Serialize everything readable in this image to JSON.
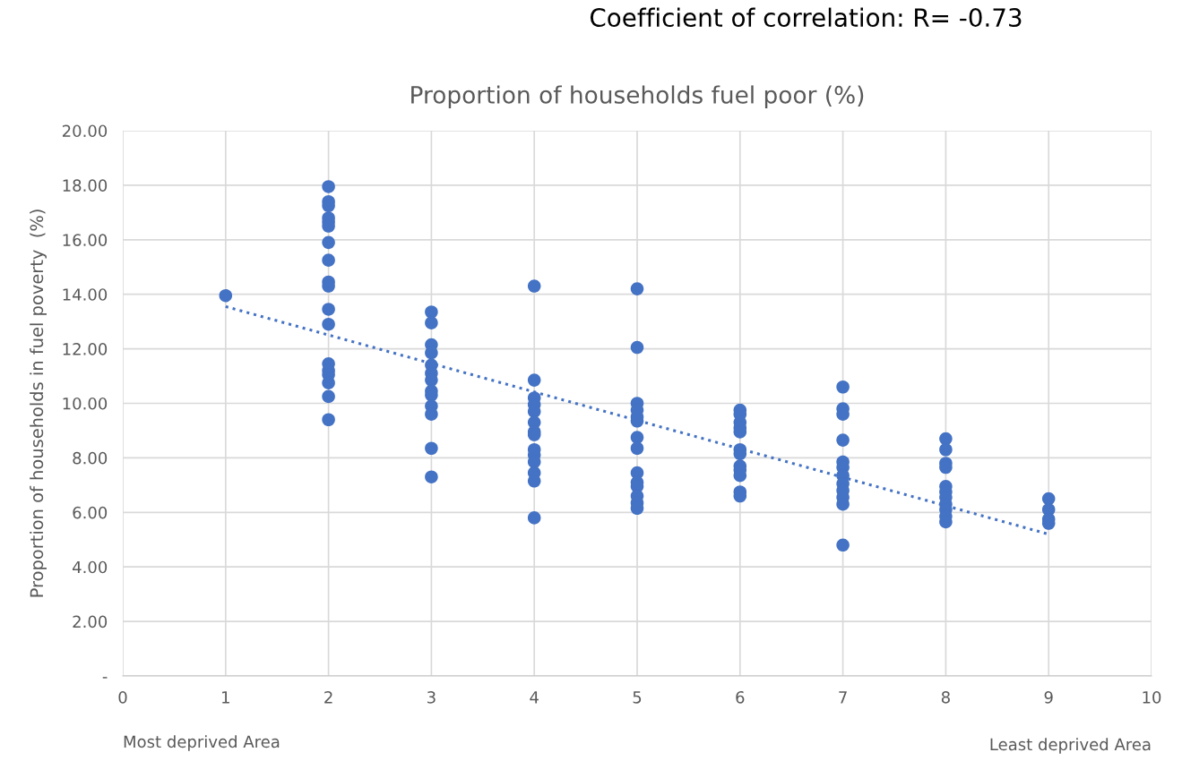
{
  "chart_data": {
    "type": "scatter",
    "title": "Proportion of households fuel poor (%)",
    "ylabel": "Proportion of households in fuel poverty  (%)",
    "annotations": [
      "Coefficient of correlation: R= -0.73",
      "Most deprived Area",
      "Least deprived Area"
    ],
    "xlim": [
      0,
      10
    ],
    "xticks": [
      0,
      1,
      2,
      3,
      4,
      5,
      6,
      7,
      8,
      9,
      10
    ],
    "ylim": [
      0,
      20
    ],
    "yticks": [
      {
        "value": 0,
        "label": "-"
      },
      {
        "value": 2,
        "label": "2.00"
      },
      {
        "value": 4,
        "label": "4.00"
      },
      {
        "value": 6,
        "label": "6.00"
      },
      {
        "value": 8,
        "label": "8.00"
      },
      {
        "value": 10,
        "label": "10.00"
      },
      {
        "value": 12,
        "label": "12.00"
      },
      {
        "value": 14,
        "label": "14.00"
      },
      {
        "value": 16,
        "label": "16.00"
      },
      {
        "value": 18,
        "label": "18.00"
      },
      {
        "value": 20,
        "label": "20.00"
      }
    ],
    "grid": true,
    "series": [
      {
        "color": "#4472c4",
        "marker": "circle",
        "x": [
          1,
          2,
          2,
          2,
          2,
          2,
          2,
          2,
          2,
          2,
          2,
          2,
          2,
          2,
          2,
          2,
          2,
          2,
          2,
          3,
          3,
          3,
          3,
          3,
          3,
          3,
          3,
          3,
          3,
          3,
          3,
          3,
          4,
          4,
          4,
          4,
          4,
          4,
          4,
          4,
          4,
          4,
          4,
          4,
          4,
          4,
          5,
          5,
          5,
          5,
          5,
          5,
          5,
          5,
          5,
          5,
          5,
          5,
          5,
          5,
          6,
          6,
          6,
          6,
          6,
          6,
          6,
          6,
          6,
          6,
          6,
          6,
          7,
          7,
          7,
          7,
          7,
          7,
          7,
          7,
          7,
          7,
          7,
          7,
          8,
          8,
          8,
          8,
          8,
          8,
          8,
          8,
          8,
          8,
          8,
          9,
          9,
          9,
          9
        ],
        "values": [
          13.95,
          17.95,
          17.4,
          17.25,
          16.8,
          16.65,
          16.5,
          15.9,
          15.25,
          14.45,
          14.3,
          13.45,
          12.9,
          11.45,
          11.2,
          11.05,
          10.75,
          10.25,
          9.4,
          13.35,
          12.95,
          12.15,
          11.85,
          11.4,
          11.1,
          10.85,
          10.45,
          10.3,
          9.9,
          9.6,
          8.35,
          7.3,
          14.3,
          10.85,
          10.2,
          9.95,
          9.7,
          9.3,
          8.95,
          8.85,
          8.3,
          8.1,
          7.85,
          7.45,
          7.15,
          5.8,
          14.2,
          12.05,
          10.0,
          9.75,
          9.5,
          9.35,
          8.75,
          8.35,
          7.45,
          7.1,
          6.95,
          6.6,
          6.35,
          6.15,
          9.75,
          9.6,
          9.3,
          9.1,
          8.95,
          8.3,
          8.15,
          7.7,
          7.55,
          7.35,
          6.75,
          6.6,
          10.6,
          9.8,
          9.6,
          8.65,
          7.85,
          7.65,
          7.35,
          7.05,
          6.8,
          6.55,
          6.3,
          4.8,
          8.7,
          8.3,
          7.8,
          7.65,
          6.95,
          6.75,
          6.55,
          6.3,
          6.1,
          5.85,
          5.65,
          6.5,
          6.1,
          5.75,
          5.6
        ]
      },
      {
        "type": "line",
        "color": "#4472c4",
        "x": [
          1,
          9
        ],
        "values": [
          13.55,
          5.2
        ],
        "line_style": "dotted",
        "marker": "none"
      }
    ]
  }
}
